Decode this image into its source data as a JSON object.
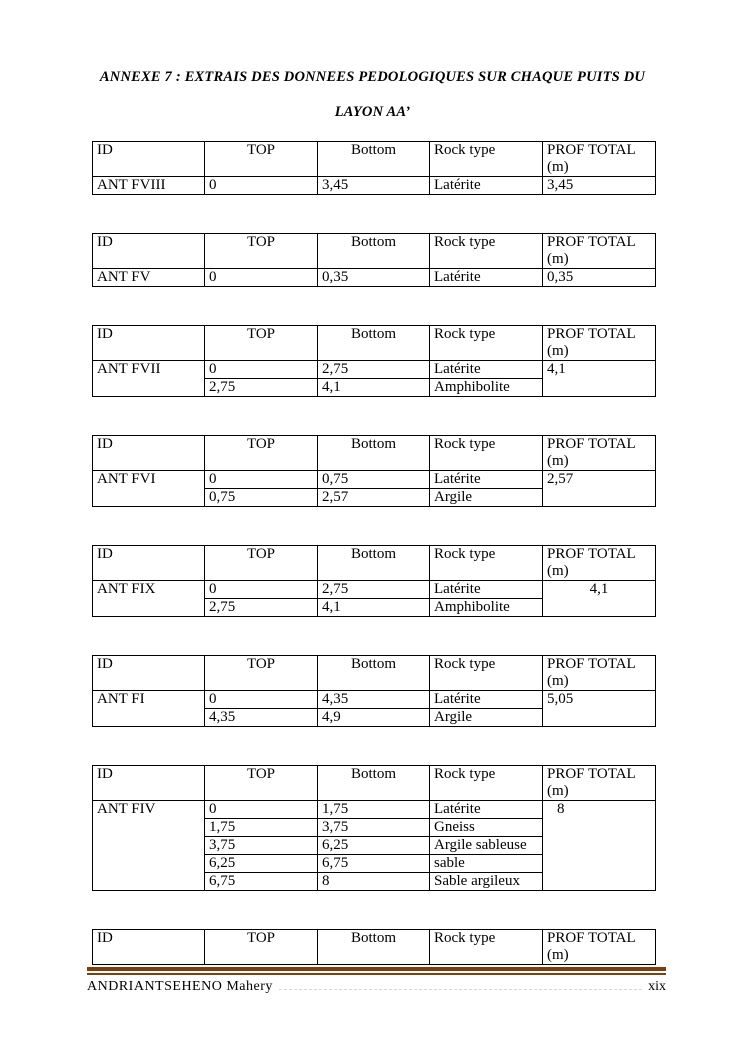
{
  "page": {
    "title_line1": "ANNEXE 7 : EXTRAIS DES DONNEES PEDOLOGIQUES SUR CHAQUE PUITS DU",
    "title_line2": "LAYON AA’",
    "footer_author": "ANDRIANTSEHENO Mahery",
    "footer_page_number": "xix",
    "footer_rule_color": "#7d3f10"
  },
  "table_headers": {
    "id": "ID",
    "top": "TOP",
    "bottom": "Bottom",
    "rock_type": "Rock type",
    "prof_total_line1": "PROF TOTAL",
    "prof_total_line2": "(m)"
  },
  "tables": [
    {
      "id": "ANT FVIII",
      "prof_total": "3,45",
      "prof_align": "left",
      "header_only": false,
      "rows": [
        [
          "0",
          "3,45",
          "Latérite"
        ]
      ]
    },
    {
      "id": "ANT FV",
      "prof_total": "0,35",
      "prof_align": "left",
      "header_only": false,
      "rows": [
        [
          "0",
          "0,35",
          "Latérite"
        ]
      ]
    },
    {
      "id": "ANT FVII",
      "prof_total": "4,1",
      "prof_align": "left",
      "header_only": false,
      "rows": [
        [
          "0",
          "2,75",
          "Latérite"
        ],
        [
          "2,75",
          "4,1",
          "Amphibolite"
        ]
      ]
    },
    {
      "id": "ANT FVI",
      "prof_total": "2,57",
      "prof_align": "left",
      "header_only": false,
      "rows": [
        [
          "0",
          "0,75",
          "Latérite"
        ],
        [
          "0,75",
          "2,57",
          "Argile"
        ]
      ]
    },
    {
      "id": "ANT FIX",
      "prof_total": "4,1",
      "prof_align": "center",
      "header_only": false,
      "rows": [
        [
          "0",
          "2,75",
          "Latérite"
        ],
        [
          "2,75",
          "4,1",
          "Amphibolite"
        ]
      ]
    },
    {
      "id": "ANT FI",
      "prof_total": "5,05",
      "prof_align": "left",
      "header_only": false,
      "rows": [
        [
          "0",
          "4,35",
          "Latérite"
        ],
        [
          "4,35",
          "4,9",
          "Argile"
        ]
      ]
    },
    {
      "id": "ANT FIV",
      "prof_total": "8",
      "prof_align": "indent",
      "header_only": false,
      "rows": [
        [
          "0",
          "1,75",
          "Latérite"
        ],
        [
          "1,75",
          "3,75",
          "Gneiss"
        ],
        [
          "3,75",
          "6,25",
          "Argile sableuse"
        ],
        [
          "6,25",
          "6,75",
          "sable"
        ],
        [
          "6,75",
          "8",
          "Sable argileux"
        ]
      ]
    },
    {
      "id": null,
      "prof_total": null,
      "prof_align": "left",
      "header_only": true,
      "rows": []
    }
  ]
}
